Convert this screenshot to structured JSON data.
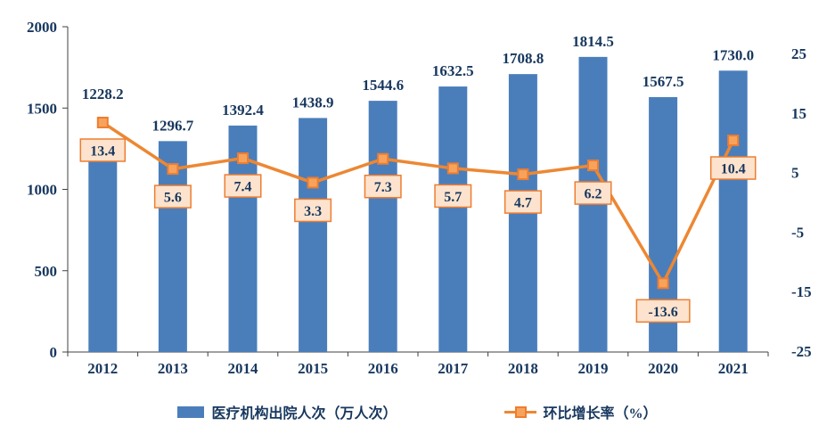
{
  "chart_data": {
    "type": "bar",
    "combo": "bar+line",
    "title": "",
    "categories": [
      "2012",
      "2013",
      "2014",
      "2015",
      "2016",
      "2017",
      "2018",
      "2019",
      "2020",
      "2021"
    ],
    "series": [
      {
        "name": "医疗机构出院人次（万人次）",
        "type": "bar",
        "axis": "left",
        "values": [
          1228.2,
          1296.7,
          1392.4,
          1438.9,
          1544.6,
          1632.5,
          1708.8,
          1814.5,
          1567.5,
          1730.0
        ]
      },
      {
        "name": "环比增长率（%）",
        "type": "line",
        "axis": "right",
        "values": [
          13.4,
          5.6,
          7.4,
          3.3,
          7.3,
          5.7,
          4.7,
          6.2,
          -13.6,
          10.4
        ]
      }
    ],
    "left_axis": {
      "min": 0,
      "max": 2000,
      "ticks": [
        0,
        500,
        1000,
        1500,
        2000
      ]
    },
    "right_axis": {
      "min": -25,
      "max": 25,
      "ticks": [
        -25,
        -15,
        -5,
        5,
        15,
        25
      ]
    },
    "grid": false,
    "legend_position": "bottom",
    "colors": {
      "bar": "#4a7ebb",
      "line": "#ed8733",
      "marker_fill": "#f7a35c",
      "marker_stroke": "#ed7d31",
      "label_box_fill": "#fde3cd",
      "label_box_stroke": "#ed7d31",
      "text": "#17375e",
      "axis": "#404040",
      "background": "#ffffff"
    }
  },
  "legend": {
    "items": [
      {
        "label": "医疗机构出院人次（万人次）",
        "swatch": "bar"
      },
      {
        "label": "环比增长率（%）",
        "swatch": "line-marker"
      }
    ]
  }
}
